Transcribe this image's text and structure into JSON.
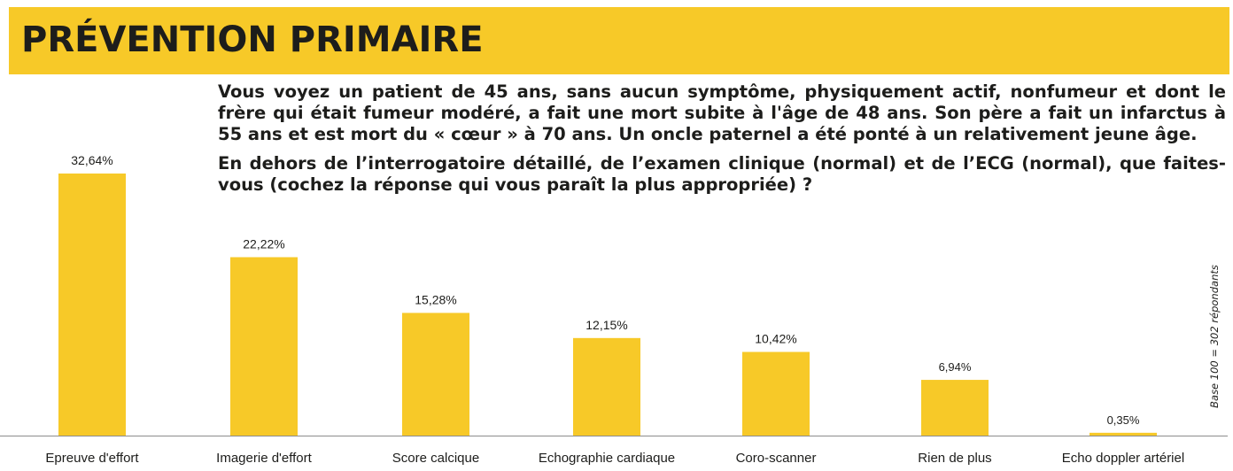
{
  "header": {
    "title": "PRÉVENTION PRIMAIRE"
  },
  "question": {
    "paragraph1": "Vous voyez un patient de 45 ans, sans aucun symptôme, physiquement actif, nonfumeur et dont le frère qui était fumeur modéré,  a fait une mort subite à l'âge de 48 ans. Son père a fait un infarctus à 55 ans et est mort du « cœur » à 70 ans. Un oncle paternel a été ponté à un relativement jeune âge.",
    "paragraph2": "En dehors de l’interrogatoire détaillé, de l’examen clinique (normal) et de l’ECG (normal), que faites-vous (cochez la réponse qui vous paraît la plus appropriée) ?"
  },
  "base_note": "Base 100 = 302 répondants",
  "colors": {
    "bar": "#f7c928",
    "banner": "#f7c928",
    "text": "#1d1d1b"
  },
  "chart_data": {
    "type": "bar",
    "title": "",
    "xlabel": "",
    "ylabel": "",
    "ylim": [
      0,
      40
    ],
    "grid": false,
    "legend": "none",
    "categories": [
      "Epreuve d'effort",
      "Imagerie d'effort",
      "Score calcique",
      "Echographie cardiaque",
      "Coro-scanner",
      "Rien de plus",
      "Echo doppler artériel"
    ],
    "values": [
      32.64,
      22.22,
      15.28,
      12.15,
      10.42,
      6.94,
      0.35
    ],
    "value_labels": [
      "32,64%",
      "22,22%",
      "15,28%",
      "12,15%",
      "10,42%",
      "6,94%",
      "0,35%"
    ]
  }
}
